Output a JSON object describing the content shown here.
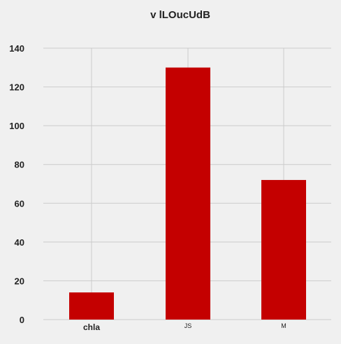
{
  "chart_data": {
    "type": "bar",
    "title": "v lLOucUdB",
    "xlabel": "",
    "ylabel": "",
    "categories": [
      "chla",
      "JS",
      "M"
    ],
    "values": [
      14,
      130,
      72
    ],
    "ylim": [
      0,
      140
    ],
    "yticks": [
      0,
      20,
      40,
      60,
      80,
      100,
      120,
      140
    ],
    "grid": true,
    "legend": "none",
    "colors": {
      "bar": "#c40000",
      "background": "#f0f0f0",
      "grid": "#cbcbcb"
    }
  }
}
